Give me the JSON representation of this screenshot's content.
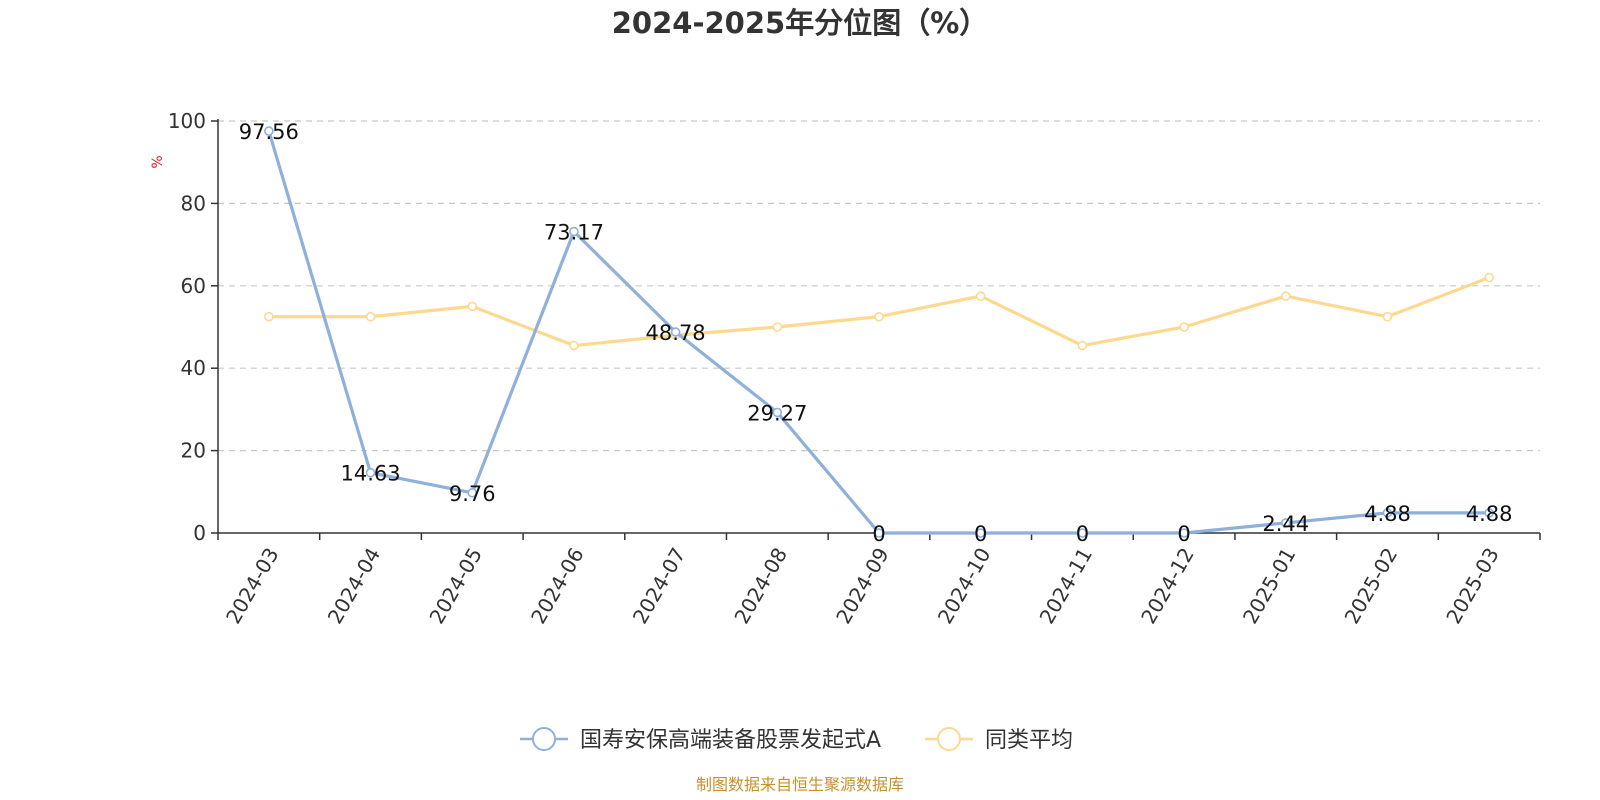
{
  "chart_data": {
    "type": "line",
    "title": "2024-2025年分位图（%）",
    "ylabel": "%",
    "ylim": [
      0,
      100
    ],
    "yticks": [
      0,
      20,
      40,
      60,
      80,
      100
    ],
    "grid": true,
    "legend_position": "bottom",
    "categories": [
      "2024-03",
      "2024-04",
      "2024-05",
      "2024-06",
      "2024-07",
      "2024-08",
      "2024-09",
      "2024-10",
      "2024-11",
      "2024-12",
      "2025-01",
      "2025-02",
      "2025-03"
    ],
    "series": [
      {
        "name": "国寿安保高端装备股票发起式A",
        "color": "#8eb0da",
        "values": [
          97.56,
          14.63,
          9.76,
          73.17,
          48.78,
          29.27,
          0,
          0,
          0,
          0,
          2.44,
          4.88,
          4.88
        ],
        "labels": [
          "97.56",
          "14.63",
          "9.76",
          "73.17",
          "48.78",
          "29.27",
          "0",
          "0",
          "0",
          "0",
          "2.44",
          "4.88",
          "4.88"
        ]
      },
      {
        "name": "同类平均",
        "color": "#fcd98f",
        "values": [
          52.5,
          52.5,
          55,
          45.5,
          48,
          50,
          52.5,
          57.5,
          45.5,
          50,
          57.5,
          52.5,
          62
        ]
      }
    ],
    "ylabel_color": "#e02020"
  },
  "source": {
    "text": "制图数据来自恒生聚源数据库",
    "color": "#c8902a"
  }
}
